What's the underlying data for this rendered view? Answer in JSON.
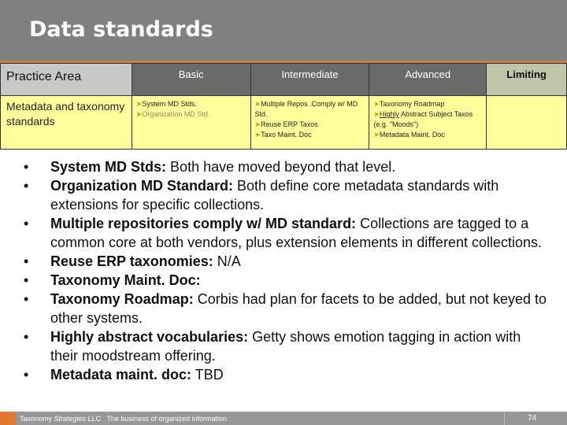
{
  "title": "Data standards",
  "table": {
    "headers": [
      "Practice Area",
      "Basic",
      "Intermediate",
      "Advanced",
      "Limiting"
    ],
    "row": {
      "area": "Metadata and taxonomy standards",
      "basic": [
        "System MD Stds.",
        "Organization MD Std."
      ],
      "intermediate": [
        "Multiple Repos .Comply w/ MD Std.",
        "Reuse ERP Taxos",
        "Taxo Maint. Doc"
      ],
      "advanced": [
        {
          "u": "Highly",
          "rest": " Abstract Subject Taxos (e.g. \"Moods\")"
        }
      ],
      "advanced_items": [
        "Taxonomy Roadmap",
        "Metadata Maint. Doc"
      ],
      "limiting": ""
    }
  },
  "bullets": [
    {
      "b": "System MD Stds:",
      "t": " Both have moved beyond that level."
    },
    {
      "b": "Organization MD Standard:",
      "t": " Both define core metadata standards with extensions for specific collections."
    },
    {
      "b": "Multiple repositories comply w/ MD standard:",
      "t": " Collections are tagged to a common core at both vendors, plus extension elements in different collections."
    },
    {
      "b": "Reuse ERP taxonomies:",
      "t": " N/A"
    },
    {
      "b": "Taxonomy Maint. Doc:",
      "t": ""
    },
    {
      "b": "Taxonomy Roadmap:",
      "t": " Corbis had plan for facets to be added, but not keyed to other systems."
    },
    {
      "b": "Highly abstract vocabularies:",
      "t": " Getty shows emotion tagging in action with their moodstream offering."
    },
    {
      "b": "Metadata maint. doc:",
      "t": " TBD"
    }
  ],
  "footer": {
    "company": "Taxonomy ",
    "company_italic": "Strategies",
    "llc": " LLC",
    "tagline": "The business of organized information",
    "page": "74"
  }
}
